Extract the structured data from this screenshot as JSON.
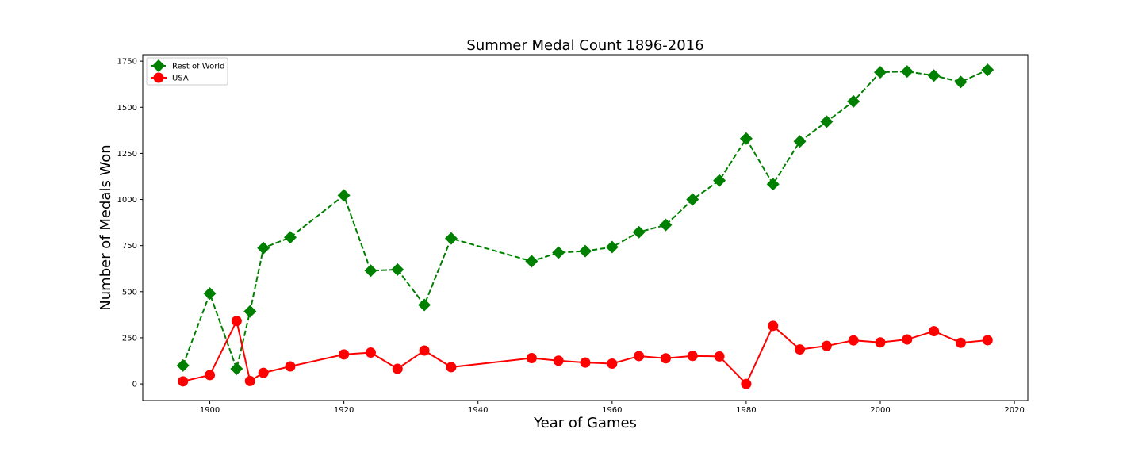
{
  "chart_data": {
    "type": "line",
    "title": "Summer Medal Count 1896-2016",
    "xlabel": "Year of Games",
    "ylabel": "Number of Medals Won",
    "xlim": [
      1890,
      2022
    ],
    "ylim": [
      -90,
      1785
    ],
    "xticks": [
      1900,
      1920,
      1940,
      1960,
      1980,
      2000,
      2020
    ],
    "yticks": [
      0,
      250,
      500,
      750,
      1000,
      1250,
      1500,
      1750
    ],
    "grid": false,
    "legend_position": "top-left",
    "series": [
      {
        "name": "Rest of World",
        "color": "#008000",
        "line_style": "dashed",
        "marker": "diamond",
        "x": [
          1896,
          1900,
          1904,
          1906,
          1908,
          1912,
          1920,
          1924,
          1928,
          1932,
          1936,
          1948,
          1952,
          1956,
          1960,
          1964,
          1968,
          1972,
          1976,
          1980,
          1984,
          1988,
          1992,
          1996,
          2000,
          2004,
          2008,
          2012,
          2016
        ],
        "y": [
          100,
          490,
          82,
          393,
          737,
          795,
          1022,
          614,
          620,
          428,
          789,
          665,
          712,
          720,
          742,
          823,
          862,
          1000,
          1103,
          1330,
          1083,
          1315,
          1422,
          1532,
          1690,
          1694,
          1672,
          1637,
          1703
        ]
      },
      {
        "name": "USA",
        "color": "#ff0000",
        "line_style": "solid",
        "marker": "circle",
        "x": [
          1896,
          1900,
          1904,
          1906,
          1908,
          1912,
          1920,
          1924,
          1928,
          1932,
          1936,
          1948,
          1952,
          1956,
          1960,
          1964,
          1968,
          1972,
          1976,
          1980,
          1984,
          1988,
          1992,
          1996,
          2000,
          2004,
          2008,
          2012,
          2016
        ],
        "y": [
          14,
          48,
          341,
          16,
          60,
          95,
          160,
          170,
          82,
          181,
          91,
          140,
          126,
          116,
          110,
          151,
          139,
          152,
          149,
          0,
          315,
          187,
          206,
          236,
          225,
          241,
          286,
          223,
          237
        ]
      }
    ]
  }
}
